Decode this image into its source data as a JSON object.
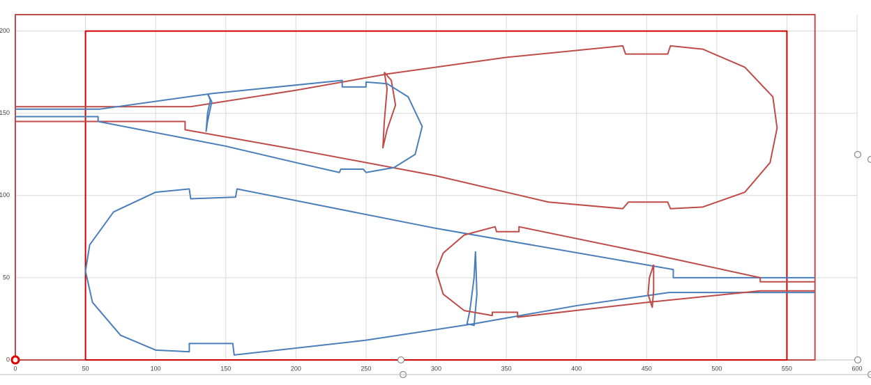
{
  "chart_data": {
    "type": "scatter",
    "grid": true,
    "xlim": [
      0,
      600
    ],
    "xticks": [
      0,
      50,
      100,
      150,
      200,
      250,
      300,
      350,
      400,
      450,
      500,
      550,
      600
    ],
    "ylim": [
      0,
      210
    ],
    "yticks": [
      0,
      50,
      100,
      150,
      200
    ],
    "series": [
      {
        "color": "#be4b48",
        "x": [
          0,
          0,
          570,
          570,
          0
        ],
        "y": [
          0,
          210,
          210,
          0,
          0
        ]
      },
      {
        "color": "#d00000",
        "x": [
          50,
          50,
          550,
          550,
          50
        ],
        "y": [
          0,
          200,
          200,
          0,
          0
        ]
      },
      {
        "color": "#be4b48",
        "x": [
          0,
          125,
          200,
          266,
          350,
          433,
          435,
          465,
          467,
          490,
          520,
          540,
          543,
          538,
          520,
          490,
          467,
          465,
          437,
          433,
          380,
          300,
          200,
          121,
          121,
          0
        ],
        "y": [
          154,
          154,
          164,
          174,
          184,
          191,
          186,
          186,
          191,
          189,
          178,
          160,
          141,
          120,
          102,
          93,
          92,
          96,
          96,
          92,
          96,
          112,
          128,
          140,
          145,
          145
        ]
      },
      {
        "color": "#be4b48",
        "x": [
          263,
          268,
          271,
          265,
          262,
          263,
          265,
          263
        ],
        "y": [
          175,
          170,
          155,
          140,
          129,
          145,
          165,
          175
        ]
      },
      {
        "color": "#4a7ebb",
        "x": [
          0,
          60,
          140,
          233,
          233,
          250,
          250,
          265,
          280,
          290,
          285,
          270,
          250,
          248,
          232,
          231,
          200,
          150,
          59,
          59,
          0
        ],
        "y": [
          152.5,
          152.5,
          162,
          170,
          166,
          166,
          169,
          168,
          160,
          142,
          125,
          117,
          114,
          116,
          116,
          114,
          120,
          130,
          145,
          148,
          148
        ]
      },
      {
        "color": "#4a7ebb",
        "x": [
          137,
          140,
          137,
          136,
          137,
          139,
          137
        ],
        "y": [
          162,
          157,
          145,
          139,
          150,
          158,
          162
        ]
      },
      {
        "color": "#4a7ebb",
        "x": [
          570,
          469,
          469,
          300,
          158,
          157,
          125,
          124,
          100,
          70,
          53,
          50,
          55,
          75,
          100,
          124,
          124,
          155,
          156,
          250,
          327,
          400,
          466,
          570
        ],
        "y": [
          50,
          50,
          55,
          80,
          104,
          99,
          98,
          104,
          102,
          90,
          70,
          54,
          35,
          15,
          6,
          5,
          10,
          10,
          3,
          12,
          22,
          33,
          41,
          41
        ]
      },
      {
        "color": "#4a7ebb",
        "x": [
          328,
          327,
          324,
          322,
          327,
          329,
          328
        ],
        "y": [
          66,
          50,
          30,
          22,
          21,
          40,
          66
        ]
      },
      {
        "color": "#be4b48",
        "x": [
          570,
          531,
          531,
          450,
          359,
          359,
          343,
          342,
          320,
          305,
          300,
          305,
          320,
          340,
          340,
          358,
          358,
          450,
          531,
          570
        ],
        "y": [
          47.5,
          47.5,
          50,
          65,
          81,
          78,
          78,
          81,
          76,
          65,
          54,
          40,
          30,
          27,
          29,
          29,
          26,
          35,
          42,
          42
        ]
      },
      {
        "color": "#be4b48",
        "x": [
          455,
          452,
          451,
          454,
          455,
          455
        ],
        "y": [
          58,
          50,
          40,
          32,
          42,
          58
        ]
      }
    ]
  }
}
